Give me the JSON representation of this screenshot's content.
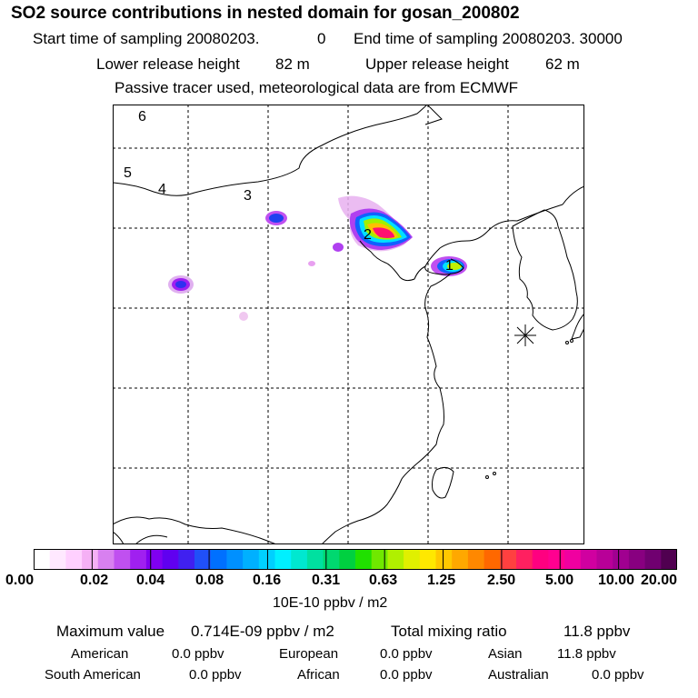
{
  "title": "SO2 source contributions in nested domain for gosan_200802",
  "sampling": {
    "start_label": "Start time of sampling 20080203.",
    "start_value": "0",
    "end_label": "End time of sampling 20080203. 30000"
  },
  "release": {
    "lower_label": "Lower release height",
    "lower_value": "82 m",
    "upper_label": "Upper release height",
    "upper_value": "62 m"
  },
  "note": "Passive tracer used, meteorological data are from ECMWF",
  "map": {
    "source_labels": [
      "1",
      "2",
      "3",
      "4",
      "5",
      "6"
    ],
    "receptor_marker": "asterisk"
  },
  "colorbar": {
    "tick_labels": [
      "0.00",
      "0.02",
      "0.04",
      "0.08",
      "0.16",
      "0.31",
      "0.63",
      "1.25",
      "2.50",
      "5.00",
      "10.00",
      "20.00"
    ],
    "unit": "10E-10 ppbv / m2",
    "colors": [
      "#ffffff",
      "#ffe8ff",
      "#ffd0ff",
      "#f5b0f5",
      "#d880f0",
      "#c050f0",
      "#a020f0",
      "#8000f0",
      "#6000f0",
      "#4020f0",
      "#2050f8",
      "#0070ff",
      "#0090ff",
      "#00b0ff",
      "#00d0ff",
      "#00f0ff",
      "#00e8d0",
      "#00e0a0",
      "#00d870",
      "#00d040",
      "#20e000",
      "#70e800",
      "#b0f000",
      "#e0f000",
      "#ffe800",
      "#ffc800",
      "#ffa800",
      "#ff8800",
      "#ff6800",
      "#ff4040",
      "#ff2060",
      "#ff0080",
      "#ff0090",
      "#f000a0",
      "#d000a0",
      "#b80098",
      "#a00090",
      "#880080",
      "#700070",
      "#500050"
    ]
  },
  "summary": {
    "max_label": "Maximum value",
    "max_value": "0.714E-09 ppbv / m2",
    "total_label": "Total mixing ratio",
    "total_value": "11.8 ppbv"
  },
  "regions": [
    {
      "name": "American",
      "value": "0.0 ppbv"
    },
    {
      "name": "European",
      "value": "0.0 ppbv"
    },
    {
      "name": "Asian",
      "value": "11.8 ppbv"
    },
    {
      "name": "South American",
      "value": "0.0 ppbv"
    },
    {
      "name": "African",
      "value": "0.0 ppbv"
    },
    {
      "name": "Australian",
      "value": "0.0 ppbv"
    }
  ]
}
